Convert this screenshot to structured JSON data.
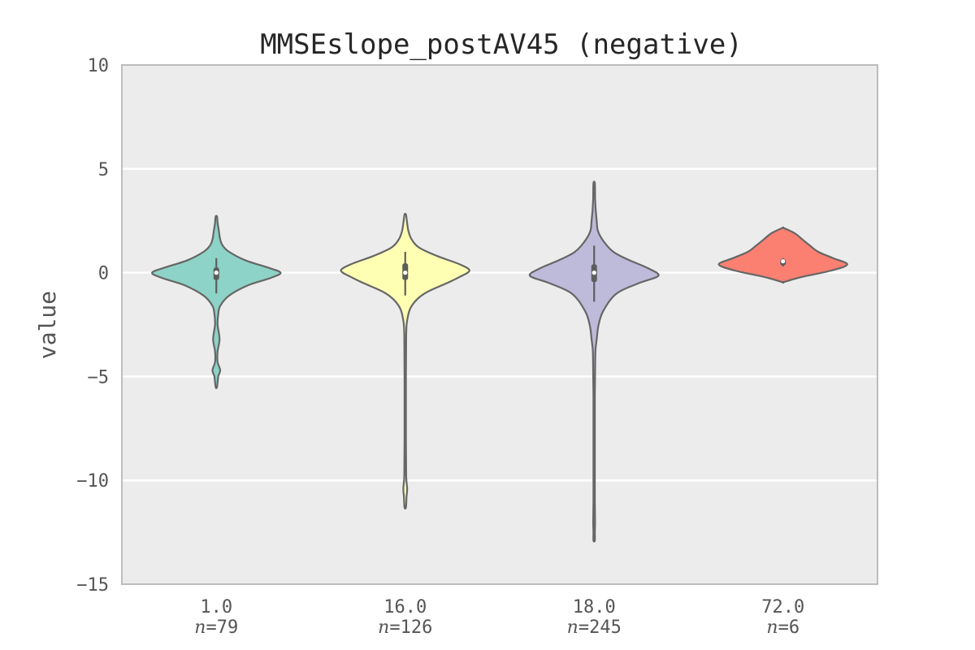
{
  "chart_data": {
    "type": "violin",
    "title": "MMSEslope_postAV45 (negative)",
    "xlabel": "",
    "ylabel": "value",
    "ylim": [
      -15,
      10
    ],
    "yticks": [
      -15,
      -10,
      -5,
      0,
      5,
      10
    ],
    "ytick_labels": [
      "−15",
      "−10",
      "−5",
      "0",
      "5",
      "10"
    ],
    "grid": true,
    "legend": "none",
    "categories": [
      "1.0",
      "16.0",
      "18.0",
      "72.0"
    ],
    "n_labels": [
      "n=79",
      "n=126",
      "n=245",
      "n=6"
    ],
    "series": [
      {
        "category": "1.0",
        "n": 79,
        "color": "#8dd3c7",
        "median": 0.0,
        "q1": -0.35,
        "q3": 0.25,
        "whisker_low": -1.0,
        "whisker_high": 0.7,
        "density_y": [
          -5.5,
          -5.0,
          -4.7,
          -4.3,
          -3.8,
          -3.2,
          -2.5,
          -2.0,
          -1.6,
          -1.1,
          -0.6,
          -0.25,
          0.0,
          0.25,
          0.6,
          1.0,
          1.3,
          1.6,
          2.0,
          2.4,
          2.7
        ],
        "density_width": [
          0.0,
          0.03,
          0.06,
          0.02,
          0.02,
          0.05,
          0.02,
          0.03,
          0.06,
          0.2,
          0.5,
          0.85,
          1.0,
          0.8,
          0.45,
          0.2,
          0.1,
          0.06,
          0.04,
          0.02,
          0.0
        ]
      },
      {
        "category": "16.0",
        "n": 126,
        "color": "#ffffb3",
        "median": 0.0,
        "q1": -0.35,
        "q3": 0.45,
        "whisker_low": -1.1,
        "whisker_high": 1.0,
        "density_y": [
          -11.3,
          -10.8,
          -10.4,
          -9.8,
          -8.0,
          -5.0,
          -3.0,
          -2.3,
          -1.6,
          -1.0,
          -0.5,
          -0.2,
          0.1,
          0.4,
          0.8,
          1.2,
          1.6,
          2.0,
          2.5,
          2.8
        ],
        "density_width": [
          0.0,
          0.02,
          0.03,
          0.015,
          0.01,
          0.01,
          0.015,
          0.03,
          0.1,
          0.3,
          0.65,
          0.85,
          1.0,
          0.85,
          0.5,
          0.22,
          0.1,
          0.05,
          0.025,
          0.0
        ]
      },
      {
        "category": "18.0",
        "n": 245,
        "color": "#bebada",
        "median": 0.0,
        "q1": -0.45,
        "q3": 0.4,
        "whisker_low": -1.4,
        "whisker_high": 1.3,
        "density_y": [
          -12.9,
          -12.5,
          -12.0,
          -11.0,
          -9.0,
          -6.0,
          -5.0,
          -3.8,
          -3.2,
          -2.5,
          -1.8,
          -1.0,
          -0.5,
          -0.15,
          0.2,
          0.6,
          1.0,
          1.5,
          2.0,
          2.5,
          3.0,
          3.6,
          4.3
        ],
        "density_width": [
          0.0,
          0.01,
          0.015,
          0.01,
          0.01,
          0.01,
          0.015,
          0.02,
          0.04,
          0.07,
          0.15,
          0.35,
          0.7,
          1.0,
          0.85,
          0.55,
          0.3,
          0.15,
          0.06,
          0.04,
          0.025,
          0.015,
          0.0
        ]
      },
      {
        "category": "72.0",
        "n": 6,
        "color": "#fb8072",
        "median": 0.55,
        "q1": 0.35,
        "q3": 0.65,
        "whisker_low": 0.3,
        "whisker_high": 0.7,
        "density_y": [
          -0.45,
          -0.2,
          0.1,
          0.4,
          0.7,
          1.0,
          1.3,
          1.6,
          1.9,
          2.15
        ],
        "density_width": [
          0.0,
          0.3,
          0.75,
          1.0,
          0.78,
          0.55,
          0.42,
          0.3,
          0.18,
          0.0
        ]
      }
    ]
  }
}
